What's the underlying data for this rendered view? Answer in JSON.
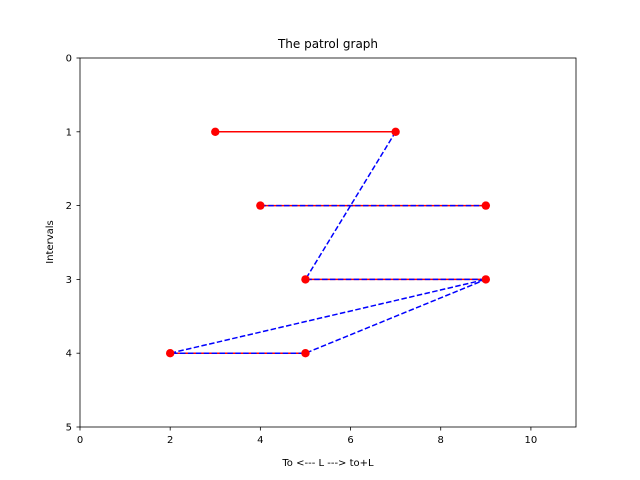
{
  "chart_data": {
    "type": "line",
    "title": "The patrol graph",
    "xlabel": "To <--- L ---> to+L",
    "ylabel": "Intervals",
    "xlim": [
      0,
      11
    ],
    "ylim": [
      5,
      0
    ],
    "y_inverted": true,
    "xticks": [
      0,
      2,
      4,
      6,
      8,
      10
    ],
    "yticks": [
      0,
      1,
      2,
      3,
      4,
      5
    ],
    "grid": false,
    "intervals": [
      {
        "interval": 1,
        "x": [
          3,
          7
        ]
      },
      {
        "interval": 2,
        "x": [
          4,
          9
        ]
      },
      {
        "interval": 3,
        "x": [
          5,
          9
        ]
      },
      {
        "interval": 4,
        "x": [
          2,
          5
        ]
      }
    ],
    "interval_style": {
      "color": "#ff0000",
      "line": "solid",
      "marker": "circle"
    },
    "patrol_path": {
      "points": [
        [
          7,
          1
        ],
        [
          5,
          3
        ],
        [
          9,
          3
        ],
        [
          2,
          4
        ],
        [
          5,
          4
        ],
        [
          9,
          3
        ]
      ],
      "extra_segments": [
        [
          [
            4,
            2
          ],
          [
            9,
            2
          ]
        ]
      ],
      "color": "#0000ff",
      "line": "dashed"
    }
  }
}
